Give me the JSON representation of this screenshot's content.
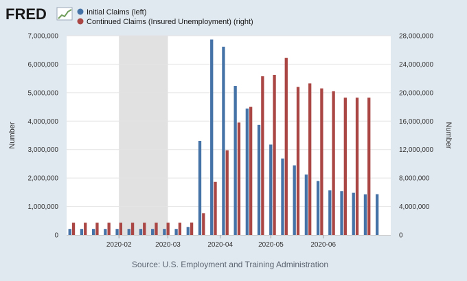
{
  "brand": {
    "logo_text": "FRED"
  },
  "chart_data": {
    "type": "bar",
    "title": "",
    "source": "Source: U.S. Employment and Training Administration",
    "x_start": "2020-01-01",
    "x_end": "2020-07-11",
    "recession": {
      "start": "2020-02-01",
      "end": "2020-03-01"
    },
    "x_ticks": [
      {
        "date": "2020-02-01",
        "label": "2020-02"
      },
      {
        "date": "2020-03-01",
        "label": "2020-03"
      },
      {
        "date": "2020-04-01",
        "label": "2020-04"
      },
      {
        "date": "2020-05-01",
        "label": "2020-05"
      },
      {
        "date": "2020-06-01",
        "label": "2020-06"
      }
    ],
    "y_left": {
      "label": "Number",
      "min": 0,
      "max": 7000000,
      "ticks": [
        0,
        1000000,
        2000000,
        3000000,
        4000000,
        5000000,
        6000000,
        7000000
      ],
      "tick_labels": [
        "0",
        "1,000,000",
        "2,000,000",
        "3,000,000",
        "4,000,000",
        "5,000,000",
        "6,000,000",
        "7,000,000"
      ]
    },
    "y_right": {
      "label": "Number",
      "min": 0,
      "max": 28000000,
      "ticks": [
        0,
        4000000,
        8000000,
        12000000,
        16000000,
        20000000,
        24000000,
        28000000
      ],
      "tick_labels": [
        "0",
        "4,000,000",
        "8,000,000",
        "12,000,000",
        "16,000,000",
        "20,000,000",
        "24,000,000",
        "28,000,000"
      ]
    },
    "series": [
      {
        "name": "Initial Claims (left)",
        "axis": "left",
        "color": "#4572a7",
        "dates": [
          "2020-01-04",
          "2020-01-11",
          "2020-01-18",
          "2020-01-25",
          "2020-02-01",
          "2020-02-08",
          "2020-02-15",
          "2020-02-22",
          "2020-02-29",
          "2020-03-07",
          "2020-03-14",
          "2020-03-21",
          "2020-03-28",
          "2020-04-04",
          "2020-04-11",
          "2020-04-18",
          "2020-04-25",
          "2020-05-02",
          "2020-05-09",
          "2020-05-16",
          "2020-05-23",
          "2020-05-30",
          "2020-06-06",
          "2020-06-13",
          "2020-06-20",
          "2020-06-27",
          "2020-07-04"
        ],
        "values": [
          212000,
          212000,
          212000,
          212000,
          212000,
          212000,
          212000,
          212000,
          212000,
          212000,
          282000,
          3307000,
          6867000,
          6615000,
          5237000,
          4442000,
          3867000,
          3176000,
          2687000,
          2446000,
          2123000,
          1897000,
          1566000,
          1540000,
          1482000,
          1427000,
          1432000
        ]
      },
      {
        "name": "Continued Claims (Insured Unemployment) (right)",
        "axis": "right",
        "color": "#aa4643",
        "dates": [
          "2020-01-04",
          "2020-01-11",
          "2020-01-18",
          "2020-01-25",
          "2020-02-01",
          "2020-02-08",
          "2020-02-15",
          "2020-02-22",
          "2020-02-29",
          "2020-03-07",
          "2020-03-14",
          "2020-03-21",
          "2020-03-28",
          "2020-04-04",
          "2020-04-11",
          "2020-04-18",
          "2020-04-25",
          "2020-05-02",
          "2020-05-09",
          "2020-05-16",
          "2020-05-23",
          "2020-05-30",
          "2020-06-06",
          "2020-06-13",
          "2020-06-20",
          "2020-06-27"
        ],
        "values": [
          1730000,
          1730000,
          1730000,
          1730000,
          1730000,
          1730000,
          1730000,
          1730000,
          1730000,
          1730000,
          1750000,
          3060000,
          7460000,
          11900000,
          15800000,
          18000000,
          22300000,
          22500000,
          24900000,
          20800000,
          21300000,
          20600000,
          20200000,
          19300000,
          19300000,
          19300000
        ]
      }
    ]
  }
}
